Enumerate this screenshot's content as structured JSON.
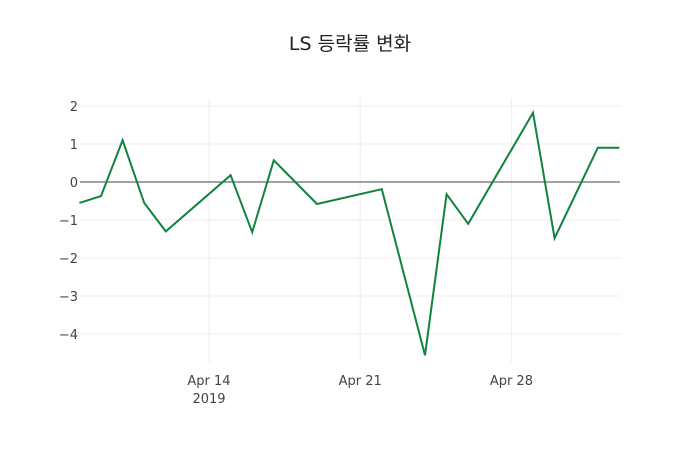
{
  "chart_data": {
    "type": "line",
    "title": "LS 등락률 변화",
    "xlabel": "",
    "ylabel": "",
    "ylim": [
      -4.7,
      2.2
    ],
    "grid": true,
    "legend": null,
    "line_color": "#10833f",
    "x_ticks": [
      {
        "date": "2019-04-14",
        "label": "Apr 14",
        "sublabel": "2019"
      },
      {
        "date": "2019-04-21",
        "label": "Apr 21",
        "sublabel": ""
      },
      {
        "date": "2019-04-28",
        "label": "Apr 28",
        "sublabel": ""
      }
    ],
    "y_ticks": [
      2,
      1,
      0,
      -1,
      -2,
      -3,
      -4
    ],
    "y_tick_labels": [
      "2",
      "1",
      "0",
      "−1",
      "−2",
      "−3",
      "−4"
    ],
    "x": [
      "2019-04-08",
      "2019-04-09",
      "2019-04-10",
      "2019-04-11",
      "2019-04-12",
      "2019-04-15",
      "2019-04-16",
      "2019-04-17",
      "2019-04-19",
      "2019-04-22",
      "2019-04-24",
      "2019-04-25",
      "2019-04-26",
      "2019-04-29",
      "2019-04-30",
      "2019-05-02",
      "2019-05-03"
    ],
    "series": [
      {
        "name": "등락률",
        "values": [
          -0.55,
          -0.37,
          1.1,
          -0.55,
          -1.3,
          0.18,
          -1.32,
          0.57,
          -0.58,
          -0.19,
          -4.56,
          -0.32,
          -1.1,
          1.82,
          -1.48,
          0.9,
          0.9
        ]
      }
    ]
  }
}
